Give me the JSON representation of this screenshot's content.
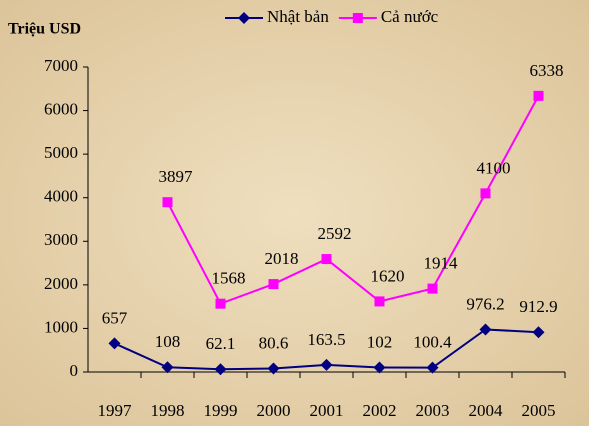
{
  "chart_data": {
    "type": "line",
    "y_axis_label": "Triệu USD",
    "categories": [
      "1997",
      "1998",
      "1999",
      "2000",
      "2001",
      "2002",
      "2003",
      "2004",
      "2005"
    ],
    "series": [
      {
        "name": "Nhật bản",
        "color": "#000080",
        "marker": "diamond",
        "values": [
          657,
          108,
          62.1,
          80.6,
          163.5,
          102,
          100.4,
          976.2,
          912.9
        ]
      },
      {
        "name": "Cả nước",
        "color": "#ff00ff",
        "marker": "square",
        "values": [
          null,
          3897,
          1568,
          2018,
          2592,
          1620,
          1914,
          4100,
          6338
        ]
      }
    ],
    "ylim": [
      0,
      7000
    ],
    "yticks": [
      0,
      1000,
      2000,
      3000,
      4000,
      5000,
      6000,
      7000
    ],
    "grid": false,
    "legend": "top"
  }
}
